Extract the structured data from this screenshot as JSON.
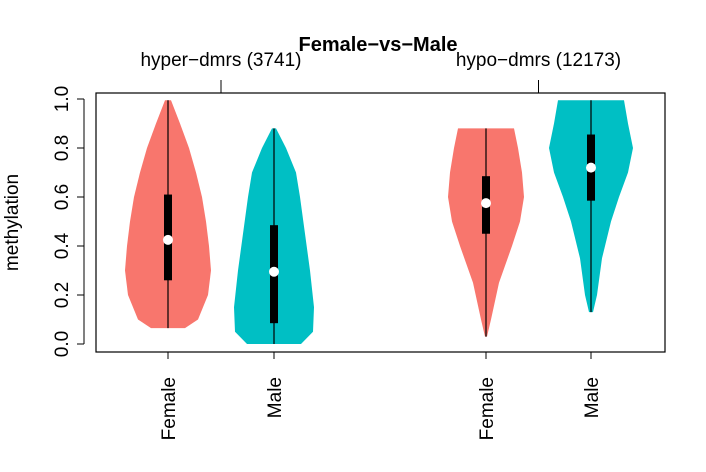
{
  "chart_data": {
    "type": "violin",
    "title": "Female−vs−Male",
    "ylabel": "methylation",
    "ylim": [
      0.0,
      1.0
    ],
    "yticks": [
      "0.0",
      "0.2",
      "0.4",
      "0.6",
      "0.8",
      "1.0"
    ],
    "grid": false,
    "groups": [
      {
        "label": "hyper−dmrs (3741)",
        "violins": [
          {
            "category": "Female",
            "color": "#F8766D",
            "min": 0.065,
            "max": 0.995,
            "q1": 0.26,
            "median": 0.425,
            "q3": 0.61,
            "profile": [
              [
                0.065,
                17
              ],
              [
                0.1,
                30
              ],
              [
                0.2,
                40
              ],
              [
                0.3,
                43
              ],
              [
                0.4,
                41
              ],
              [
                0.5,
                38
              ],
              [
                0.6,
                34
              ],
              [
                0.7,
                28
              ],
              [
                0.8,
                21
              ],
              [
                0.9,
                12
              ],
              [
                0.995,
                3
              ]
            ]
          },
          {
            "category": "Male",
            "color": "#00BFC4",
            "min": 0.0,
            "max": 0.88,
            "q1": 0.085,
            "median": 0.295,
            "q3": 0.485,
            "profile": [
              [
                0.0,
                27
              ],
              [
                0.05,
                39
              ],
              [
                0.15,
                40
              ],
              [
                0.3,
                36
              ],
              [
                0.45,
                31
              ],
              [
                0.6,
                26
              ],
              [
                0.7,
                22
              ],
              [
                0.8,
                12
              ],
              [
                0.88,
                2
              ]
            ]
          }
        ]
      },
      {
        "label": "hypo−dmrs (12173)",
        "violins": [
          {
            "category": "Female",
            "color": "#F8766D",
            "min": 0.03,
            "max": 0.88,
            "q1": 0.45,
            "median": 0.575,
            "q3": 0.685,
            "profile": [
              [
                0.03,
                1
              ],
              [
                0.1,
                5
              ],
              [
                0.25,
                13
              ],
              [
                0.4,
                26
              ],
              [
                0.5,
                34
              ],
              [
                0.6,
                38
              ],
              [
                0.7,
                36
              ],
              [
                0.8,
                32
              ],
              [
                0.88,
                28
              ]
            ]
          },
          {
            "category": "Male",
            "color": "#00BFC4",
            "min": 0.13,
            "max": 0.995,
            "q1": 0.585,
            "median": 0.72,
            "q3": 0.855,
            "profile": [
              [
                0.13,
                2
              ],
              [
                0.2,
                6
              ],
              [
                0.35,
                11
              ],
              [
                0.5,
                20
              ],
              [
                0.6,
                28
              ],
              [
                0.7,
                37
              ],
              [
                0.8,
                42
              ],
              [
                0.9,
                37
              ],
              [
                0.995,
                33
              ]
            ]
          }
        ]
      }
    ]
  }
}
